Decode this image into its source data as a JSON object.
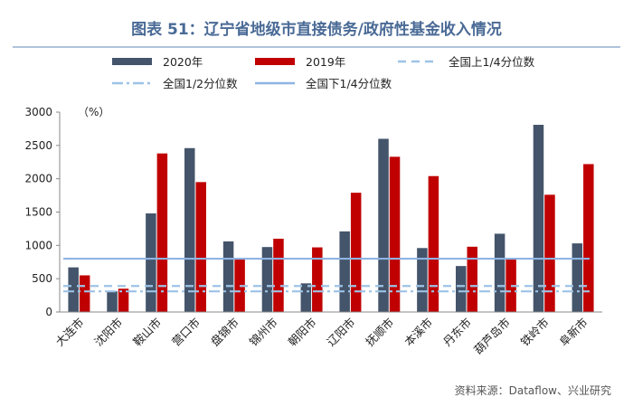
{
  "chart_data": {
    "type": "bar",
    "title": "图表 51：辽宁省地级市直接债务/政府性基金收入情况",
    "unit_label": "（%）",
    "source": "资料来源：Dataflow、兴业研究",
    "categories": [
      "大连市",
      "沈阳市",
      "鞍山市",
      "营口市",
      "盘锦市",
      "锦州市",
      "朝阳市",
      "辽阳市",
      "抚顺市",
      "本溪市",
      "丹东市",
      "葫芦岛市",
      "铁岭市",
      "阜新市"
    ],
    "series": [
      {
        "name": "2020年",
        "color": "#44546a",
        "values": [
          670,
          310,
          1480,
          2460,
          1060,
          975,
          430,
          1210,
          2600,
          960,
          690,
          1175,
          2810,
          1030
        ]
      },
      {
        "name": "2019年",
        "color": "#c00000",
        "values": [
          550,
          350,
          2380,
          1950,
          790,
          1100,
          970,
          1790,
          2330,
          2040,
          980,
          790,
          1760,
          2220
        ]
      }
    ],
    "reference_lines": [
      {
        "name": "全国上1/4分位数",
        "value": 390,
        "style": "dash",
        "color": "#9dc3e6"
      },
      {
        "name": "全国1/2分位数",
        "value": 310,
        "style": "dashdot",
        "color": "#9dc3e6"
      },
      {
        "name": "全国下1/4分位数",
        "value": 800,
        "style": "solid",
        "color": "#8eb4e3"
      }
    ],
    "ylim": [
      0,
      3000
    ],
    "yticks": [
      0,
      500,
      1000,
      1500,
      2000,
      2500,
      3000
    ],
    "grid": false,
    "legend_position": "top"
  }
}
